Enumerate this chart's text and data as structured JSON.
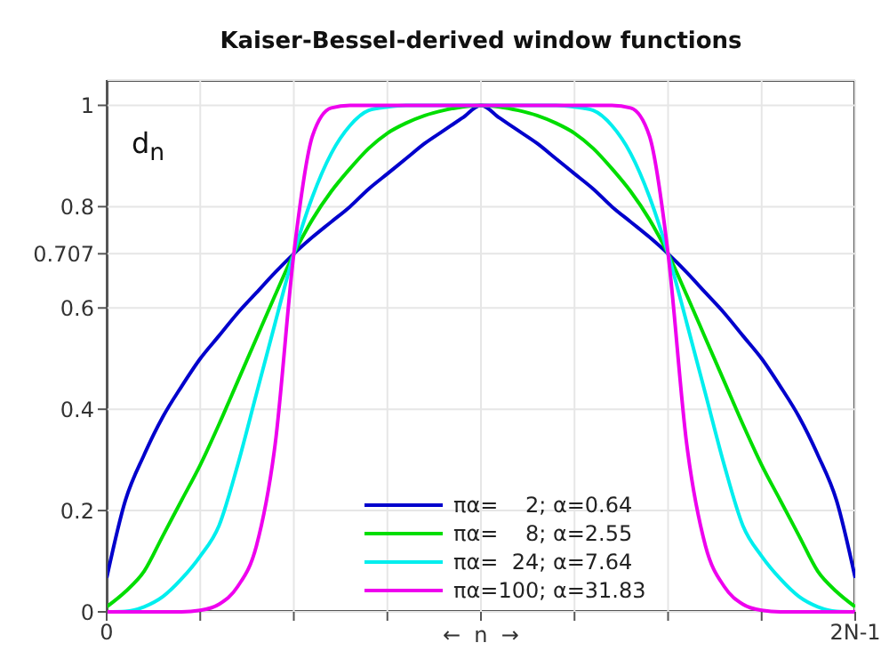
{
  "chart_data": {
    "type": "line",
    "title": "Kaiser-Bessel-derived window functions",
    "xlabel": "←  n  →",
    "annotations": [
      "d$_{n}$"
    ],
    "categories": [
      "0",
      null,
      null,
      null,
      null,
      null,
      null,
      null,
      null,
      null,
      null,
      null,
      null,
      null,
      null,
      null,
      null,
      null,
      null,
      null,
      null,
      null,
      null,
      null,
      null,
      null,
      null,
      null,
      null,
      null,
      null,
      null,
      null,
      null,
      null,
      null,
      null,
      null,
      null,
      null,
      "2N-1"
    ],
    "ylim": [
      0,
      1.05
    ],
    "yticks": [
      0,
      0.2,
      0.4,
      0.6,
      0.707,
      0.8,
      1
    ],
    "grid": true,
    "legend": "bottom",
    "marker": "none",
    "line_style": "solid",
    "series": [
      {
        "name": "πα=    2; α=0.64",
        "color": "#0000cc",
        "values": [
          0.067,
          0.22,
          0.31,
          0.385,
          0.445,
          0.5,
          0.545,
          0.59,
          0.63,
          0.67,
          0.707,
          0.74,
          0.77,
          0.8,
          0.835,
          0.865,
          0.895,
          0.925,
          0.95,
          0.975,
          1,
          0.975,
          0.95,
          0.925,
          0.895,
          0.865,
          0.835,
          0.8,
          0.77,
          0.74,
          0.707,
          0.67,
          0.63,
          0.59,
          0.545,
          0.5,
          0.445,
          0.385,
          0.31,
          0.22,
          0.067
        ]
      },
      {
        "name": "πα=    8; α=2.55",
        "color": "#00dd00",
        "values": [
          0.01,
          0.04,
          0.08,
          0.15,
          0.22,
          0.29,
          0.37,
          0.455,
          0.54,
          0.625,
          0.707,
          0.775,
          0.83,
          0.875,
          0.915,
          0.945,
          0.965,
          0.98,
          0.99,
          0.997,
          1,
          0.997,
          0.99,
          0.98,
          0.965,
          0.945,
          0.915,
          0.875,
          0.83,
          0.775,
          0.707,
          0.625,
          0.54,
          0.455,
          0.37,
          0.29,
          0.22,
          0.15,
          0.08,
          0.04,
          0.01
        ]
      },
      {
        "name": "πα=  24; α=7.64",
        "color": "#00eeee",
        "values": [
          0,
          0.001,
          0.01,
          0.03,
          0.065,
          0.11,
          0.17,
          0.29,
          0.43,
          0.57,
          0.707,
          0.82,
          0.905,
          0.96,
          0.99,
          0.997,
          1,
          1,
          1,
          1,
          1,
          1,
          1,
          1,
          1,
          0.997,
          0.99,
          0.96,
          0.905,
          0.82,
          0.707,
          0.57,
          0.43,
          0.29,
          0.17,
          0.11,
          0.065,
          0.03,
          0.01,
          0.001,
          0
        ]
      },
      {
        "name": "πα=100; α=31.83",
        "color": "#ee00ee",
        "values": [
          0,
          0,
          0,
          0,
          0,
          0.003,
          0.015,
          0.05,
          0.13,
          0.33,
          0.707,
          0.94,
          0.995,
          1,
          1,
          1,
          1,
          1,
          1,
          1,
          1,
          1,
          1,
          1,
          1,
          1,
          1,
          1,
          0.995,
          0.94,
          0.707,
          0.33,
          0.13,
          0.05,
          0.015,
          0.003,
          0,
          0,
          0,
          0,
          0
        ]
      }
    ]
  }
}
